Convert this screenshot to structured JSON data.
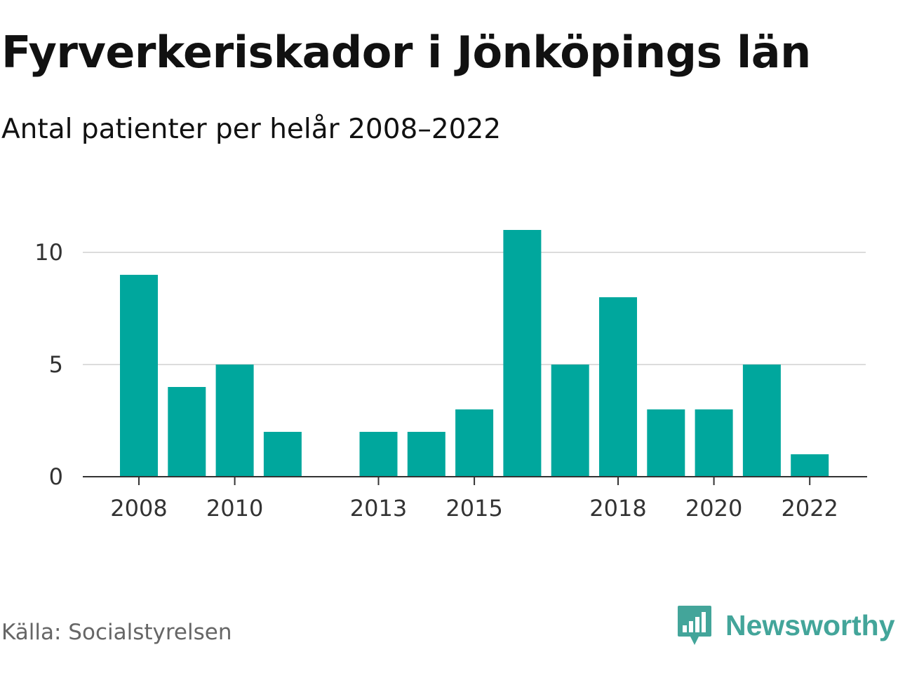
{
  "title": "Fyrverkeriskador i Jönköpings län",
  "subtitle": "Antal patienter per helår 2008–2022",
  "source": "Källa: Socialstyrelsen",
  "brand": {
    "name": "Newsworthy",
    "icon": "newsworthy-logo-icon",
    "color": "#43a59a"
  },
  "colors": {
    "bar": "#00a79d",
    "grid": "#dcdcdc",
    "axis": "#333333"
  },
  "chart_data": {
    "type": "bar",
    "title": "Fyrverkeriskador i Jönköpings län",
    "subtitle": "Antal patienter per helår 2008–2022",
    "categories": [
      "2008",
      "2009",
      "2010",
      "2011",
      "2012",
      "2013",
      "2014",
      "2015",
      "2016",
      "2017",
      "2018",
      "2019",
      "2020",
      "2021",
      "2022"
    ],
    "values": [
      9,
      4,
      5,
      2,
      0,
      2,
      2,
      3,
      11,
      5,
      8,
      3,
      3,
      5,
      1
    ],
    "x_tick_labels": [
      "2008",
      "2010",
      "2013",
      "2015",
      "2018",
      "2020",
      "2022"
    ],
    "y_ticks": [
      0,
      5,
      10
    ],
    "ylim": [
      0,
      11
    ],
    "xlabel": "",
    "ylabel": "",
    "grid": true,
    "legend": "none"
  }
}
